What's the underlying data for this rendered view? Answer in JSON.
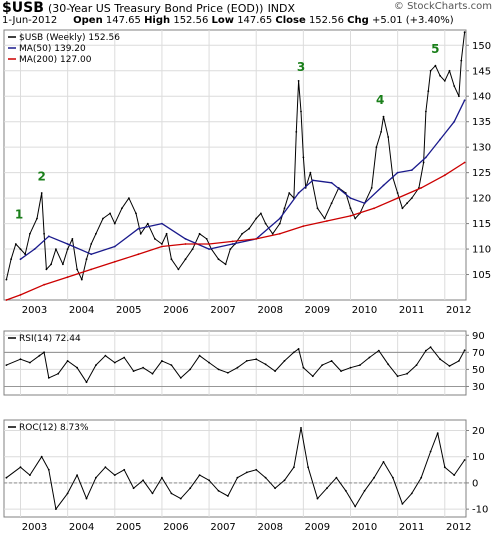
{
  "header": {
    "symbol": "$USB",
    "description": "(30-Year US Treasury Bond Price (EOD))",
    "exchange": "INDX",
    "date": "1-Jun-2012",
    "open_label": "Open",
    "open": "147.65",
    "high_label": "High",
    "high": "152.56",
    "low_label": "Low",
    "low": "147.65",
    "close_label": "Close",
    "close": "152.56",
    "chg_label": "Chg",
    "chg": "+5.01 (+3.40%)",
    "brand": "© StockCharts.com"
  },
  "chart_data": [
    {
      "type": "line",
      "panel": "price",
      "legend": [
        {
          "label": "$USB (Weekly) 152.56",
          "color": "#000000"
        },
        {
          "label": "MA(50) 139.20",
          "color": "#1a1a8c"
        },
        {
          "label": "MA(200) 127.00",
          "color": "#cc0000"
        }
      ],
      "legend_position": "top-left",
      "ylim": [
        100,
        153
      ],
      "yticks": [
        105,
        110,
        115,
        120,
        125,
        130,
        135,
        140,
        145,
        150
      ],
      "y_axis_side": "right",
      "grid": true,
      "x_tick_labels": [
        "2003",
        "2004",
        "2005",
        "2006",
        "2007",
        "2008",
        "2009",
        "2010",
        "2011",
        "2012"
      ],
      "x_tick_years": [
        2003,
        2004,
        2005,
        2006,
        2007,
        2008,
        2009,
        2010,
        2011,
        2012
      ],
      "xlim": [
        2002.65,
        2012.45
      ],
      "series": [
        {
          "name": "$USB (Weekly) 152.56",
          "color": "#000000",
          "x": [
            2002.7,
            2002.8,
            2002.9,
            2003.0,
            2003.1,
            2003.2,
            2003.35,
            2003.45,
            2003.5,
            2003.55,
            2003.65,
            2003.75,
            2003.9,
            2004.0,
            2004.1,
            2004.2,
            2004.3,
            2004.4,
            2004.5,
            2004.6,
            2004.75,
            2004.9,
            2005.0,
            2005.15,
            2005.3,
            2005.45,
            2005.55,
            2005.7,
            2005.85,
            2006.0,
            2006.1,
            2006.2,
            2006.35,
            2006.5,
            2006.65,
            2006.8,
            2006.95,
            2007.05,
            2007.2,
            2007.35,
            2007.45,
            2007.55,
            2007.7,
            2007.85,
            2008.0,
            2008.1,
            2008.2,
            2008.35,
            2008.5,
            2008.6,
            2008.7,
            2008.8,
            2008.85,
            2008.9,
            2008.95,
            2009.0,
            2009.05,
            2009.15,
            2009.3,
            2009.45,
            2009.6,
            2009.75,
            2009.9,
            2010.0,
            2010.1,
            2010.2,
            2010.3,
            2010.45,
            2010.55,
            2010.65,
            2010.7,
            2010.8,
            2010.9,
            2011.0,
            2011.1,
            2011.2,
            2011.3,
            2011.45,
            2011.55,
            2011.6,
            2011.65,
            2011.7,
            2011.8,
            2011.9,
            2012.0,
            2012.1,
            2012.2,
            2012.3,
            2012.35,
            2012.42
          ],
          "values": [
            104,
            108,
            111,
            110,
            109,
            113,
            116,
            121,
            113,
            106,
            107,
            110,
            107,
            110,
            112,
            106,
            104,
            108,
            111,
            113,
            116,
            117,
            115,
            118,
            120,
            117,
            113,
            115,
            112,
            111,
            113,
            108,
            106,
            108,
            110,
            113,
            112,
            110,
            108,
            107,
            110,
            111,
            113,
            114,
            116,
            117,
            115,
            113,
            115,
            118,
            121,
            120,
            133,
            143,
            137,
            128,
            122,
            125,
            118,
            116,
            119,
            122,
            121,
            118,
            116,
            117,
            119,
            122,
            130,
            133,
            136,
            132,
            124,
            121,
            118,
            119,
            120,
            122,
            127,
            137,
            141,
            145,
            146,
            144,
            143,
            145,
            142,
            140,
            147,
            152.56
          ]
        },
        {
          "name": "MA(50) 139.20",
          "color": "#1a1a8c",
          "x": [
            2003.0,
            2003.3,
            2003.6,
            2004.0,
            2004.5,
            2005.0,
            2005.5,
            2006.0,
            2006.5,
            2007.0,
            2007.5,
            2008.0,
            2008.5,
            2008.9,
            2009.2,
            2009.6,
            2010.0,
            2010.3,
            2010.7,
            2011.0,
            2011.3,
            2011.6,
            2011.9,
            2012.2,
            2012.42
          ],
          "values": [
            108,
            110,
            112.5,
            111,
            109,
            110.5,
            114,
            115,
            112,
            110,
            111,
            112,
            116,
            121,
            123.5,
            123,
            120,
            119,
            122.5,
            125,
            125.5,
            128,
            131.5,
            135,
            139.2
          ]
        },
        {
          "name": "MA(200) 127.00",
          "color": "#cc0000",
          "x": [
            2002.7,
            2003.0,
            2003.5,
            2004.0,
            2004.5,
            2005.0,
            2005.5,
            2006.0,
            2006.5,
            2007.0,
            2007.5,
            2008.0,
            2008.5,
            2009.0,
            2009.5,
            2010.0,
            2010.5,
            2011.0,
            2011.5,
            2012.0,
            2012.42
          ],
          "values": [
            100,
            101,
            103,
            104.5,
            106,
            107.5,
            109,
            110.5,
            111,
            111,
            111.5,
            112,
            113,
            114.5,
            115.5,
            116.5,
            118,
            120,
            122,
            124.5,
            127
          ]
        }
      ],
      "annotations": [
        {
          "text": "1",
          "x": 2002.97,
          "y": 116
        },
        {
          "text": "2",
          "x": 2003.45,
          "y": 123.5
        },
        {
          "text": "3",
          "x": 2008.95,
          "y": 145
        },
        {
          "text": "4",
          "x": 2010.63,
          "y": 138.5
        },
        {
          "text": "5",
          "x": 2011.8,
          "y": 148.5
        }
      ]
    },
    {
      "type": "line",
      "panel": "rsi",
      "legend": [
        {
          "label": "RSI(14) 72.44",
          "color": "#000000"
        }
      ],
      "ylim": [
        20,
        95
      ],
      "yticks": [
        30,
        50,
        70,
        90
      ],
      "reference_lines": [
        30,
        70
      ],
      "series": [
        {
          "name": "RSI(14) 72.44",
          "color": "#000000",
          "x": [
            2002.7,
            2003.0,
            2003.2,
            2003.4,
            2003.5,
            2003.6,
            2003.8,
            2004.0,
            2004.2,
            2004.4,
            2004.6,
            2004.8,
            2005.0,
            2005.2,
            2005.4,
            2005.6,
            2005.8,
            2006.0,
            2006.2,
            2006.4,
            2006.6,
            2006.8,
            2007.0,
            2007.2,
            2007.4,
            2007.6,
            2007.8,
            2008.0,
            2008.2,
            2008.4,
            2008.6,
            2008.8,
            2008.9,
            2009.0,
            2009.2,
            2009.4,
            2009.6,
            2009.8,
            2010.0,
            2010.2,
            2010.4,
            2010.6,
            2010.8,
            2011.0,
            2011.2,
            2011.4,
            2011.6,
            2011.7,
            2011.9,
            2012.1,
            2012.3,
            2012.42
          ],
          "values": [
            55,
            62,
            58,
            66,
            70,
            40,
            45,
            60,
            52,
            35,
            55,
            66,
            58,
            64,
            48,
            52,
            45,
            60,
            55,
            40,
            50,
            66,
            58,
            50,
            46,
            52,
            60,
            62,
            56,
            48,
            60,
            70,
            74,
            52,
            42,
            55,
            60,
            48,
            52,
            55,
            64,
            72,
            56,
            42,
            45,
            55,
            72,
            76,
            62,
            54,
            60,
            72.44
          ]
        }
      ]
    },
    {
      "type": "line",
      "panel": "roc",
      "legend": [
        {
          "label": "ROC(12) 8.73%",
          "color": "#000000"
        }
      ],
      "ylim": [
        -13,
        24
      ],
      "yticks": [
        -10,
        0,
        10,
        20
      ],
      "reference_lines": [
        0
      ],
      "series": [
        {
          "name": "ROC(12) 8.73%",
          "color": "#000000",
          "x": [
            2002.7,
            2003.0,
            2003.2,
            2003.45,
            2003.6,
            2003.75,
            2004.0,
            2004.2,
            2004.4,
            2004.6,
            2004.8,
            2005.0,
            2005.2,
            2005.4,
            2005.6,
            2005.8,
            2006.0,
            2006.2,
            2006.4,
            2006.6,
            2006.8,
            2007.0,
            2007.2,
            2007.4,
            2007.6,
            2007.8,
            2008.0,
            2008.2,
            2008.4,
            2008.6,
            2008.8,
            2008.95,
            2009.1,
            2009.3,
            2009.5,
            2009.7,
            2009.9,
            2010.1,
            2010.3,
            2010.5,
            2010.7,
            2010.9,
            2011.1,
            2011.3,
            2011.5,
            2011.7,
            2011.85,
            2012.0,
            2012.2,
            2012.42
          ],
          "values": [
            2,
            6,
            3,
            10,
            5,
            -10,
            -4,
            3,
            -6,
            2,
            6,
            3,
            5,
            -2,
            1,
            -4,
            2,
            -4,
            -6,
            -2,
            3,
            1,
            -3,
            -5,
            2,
            4,
            5,
            2,
            -2,
            1,
            6,
            21,
            6,
            -6,
            -2,
            2,
            -3,
            -9,
            -3,
            2,
            8,
            2,
            -8,
            -4,
            2,
            12,
            19,
            6,
            3,
            8.73
          ]
        }
      ]
    }
  ]
}
